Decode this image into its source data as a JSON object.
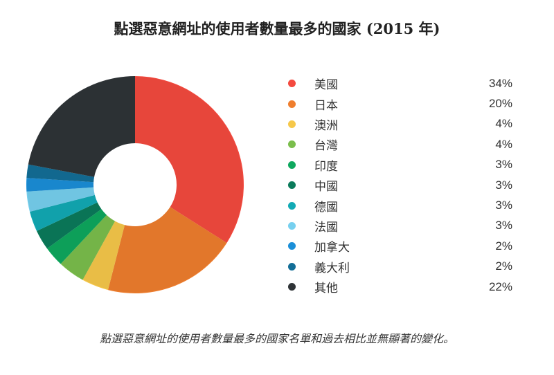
{
  "chart_data": {
    "type": "pie",
    "title": "點選惡意網址的使用者數量最多的國家 (2015 年)",
    "caption": "點選惡意網址的使用者數量最多的國家名單和過去相比並無顯著的變化。",
    "legend_position": "right",
    "slices": [
      {
        "label": "美國",
        "value": 34,
        "display": "34%",
        "color": "#f44a3f"
      },
      {
        "label": "日本",
        "value": 20,
        "display": "20%",
        "color": "#ef7e2e"
      },
      {
        "label": "澳洲",
        "value": 4,
        "display": "4%",
        "color": "#f6c84a"
      },
      {
        "label": "台灣",
        "value": 4,
        "display": "4%",
        "color": "#7bbe4c"
      },
      {
        "label": "印度",
        "value": 3,
        "display": "3%",
        "color": "#0ea85e"
      },
      {
        "label": "中國",
        "value": 3,
        "display": "3%",
        "color": "#0b7b5b"
      },
      {
        "label": "德國",
        "value": 3,
        "display": "3%",
        "color": "#12aab5"
      },
      {
        "label": "法國",
        "value": 3,
        "display": "3%",
        "color": "#77d0ef"
      },
      {
        "label": "加拿大",
        "value": 2,
        "display": "2%",
        "color": "#1b8fd8"
      },
      {
        "label": "義大利",
        "value": 2,
        "display": "2%",
        "color": "#136e97"
      },
      {
        "label": "其他",
        "value": 22,
        "display": "22%",
        "color": "#2f3437"
      }
    ]
  }
}
